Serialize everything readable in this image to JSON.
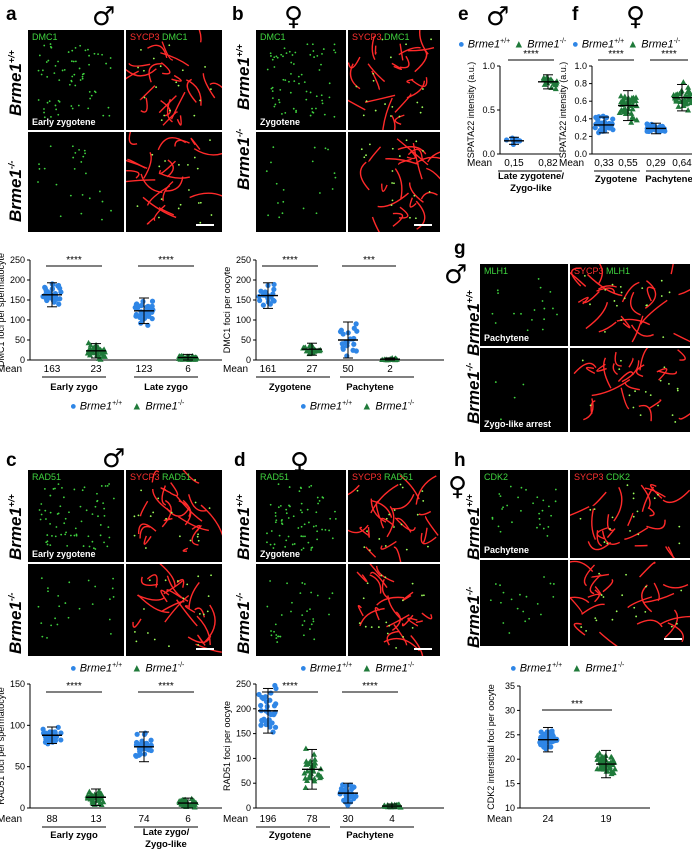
{
  "panels": {
    "a": {
      "label": "a",
      "sex": "♂"
    },
    "b": {
      "label": "b",
      "sex": "♀"
    },
    "c": {
      "label": "c",
      "sex": "♂"
    },
    "d": {
      "label": "d",
      "sex": "♀"
    },
    "e": {
      "label": "e",
      "sex": "♂"
    },
    "f": {
      "label": "f",
      "sex": "♀"
    },
    "g": {
      "label": "g",
      "sex": "♂"
    },
    "h": {
      "label": "h",
      "sex": "♀"
    }
  },
  "genotypes": {
    "wt": "Brme1",
    "wt_sup": "+/+",
    "ko": "Brme1",
    "ko_sup": "-/-"
  },
  "micro": {
    "a": {
      "ch1": "DMC1",
      "ch2a": "SYCP3",
      "ch2b": "DMC1",
      "stage": "Early zygotene"
    },
    "b": {
      "ch1": "DMC1",
      "ch2a": "SYCP3",
      "ch2b": "DMC1",
      "stage": "Zygotene"
    },
    "c": {
      "ch1": "RAD51",
      "ch2a": "SYCP3",
      "ch2b": "RAD51",
      "stage": "Early zygotene"
    },
    "d": {
      "ch1": "RAD51",
      "ch2a": "SYCP3",
      "ch2b": "RAD51",
      "stage": "Zygotene"
    },
    "g": {
      "ch1": "MLH1",
      "ch2a": "SYCP3",
      "ch2b": "MLH1",
      "stage1": "Pachytene",
      "stage2": "Zygo-like arrest"
    },
    "h": {
      "ch1": "CDK2",
      "ch2a": "SYCP3",
      "ch2b": "CDK2",
      "stage": "Pachytene"
    }
  },
  "colors": {
    "wt": "#2f86e6",
    "ko": "#1f7a3a"
  },
  "chart_data": [
    {
      "id": "a",
      "type": "scatter",
      "ylabel": "DMC1 foci per spermatocyte",
      "ylim": [
        0,
        250
      ],
      "yticks": [
        "0",
        "50",
        "100",
        "150",
        "200",
        "250"
      ],
      "categories": [
        "Early zygo",
        "Late zygo"
      ],
      "means": [
        "163",
        "23",
        "123",
        "6"
      ],
      "mean_label": "Mean",
      "series": [
        {
          "name": "Brme1+/+",
          "values": [
            163,
            123
          ]
        },
        {
          "name": "Brme1-/-",
          "values": [
            23,
            6
          ]
        }
      ],
      "sd": [
        30,
        18,
        32,
        8
      ],
      "significance": [
        "****",
        "****"
      ]
    },
    {
      "id": "b",
      "type": "scatter",
      "ylabel": "DMC1 foci per oocyte",
      "ylim": [
        0,
        250
      ],
      "yticks": [
        "0",
        "50",
        "100",
        "150",
        "200",
        "250"
      ],
      "categories": [
        "Zygotene",
        "Pachytene"
      ],
      "means": [
        "161",
        "27",
        "50",
        "2"
      ],
      "mean_label": "Mean",
      "series": [
        {
          "name": "Brme1+/+",
          "values": [
            161,
            50
          ]
        },
        {
          "name": "Brme1-/-",
          "values": [
            27,
            2
          ]
        }
      ],
      "sd": [
        32,
        15,
        45,
        3
      ],
      "significance": [
        "****",
        "***"
      ]
    },
    {
      "id": "c",
      "type": "scatter",
      "ylabel": "RAD51 foci per spermatocyte",
      "ylim": [
        0,
        150
      ],
      "yticks": [
        "0",
        "50",
        "100",
        "150"
      ],
      "categories": [
        "Early zygo",
        "Late zygo/ Zygo-like"
      ],
      "means": [
        "88",
        "13",
        "74",
        "6"
      ],
      "mean_label": "Mean",
      "series": [
        {
          "name": "Brme1+/+",
          "values": [
            88,
            74
          ]
        },
        {
          "name": "Brme1-/-",
          "values": [
            13,
            6
          ]
        }
      ],
      "sd": [
        10,
        10,
        18,
        6
      ],
      "significance": [
        "****",
        "****"
      ]
    },
    {
      "id": "d",
      "type": "scatter",
      "ylabel": "RAD51 foci per oocyte",
      "ylim": [
        0,
        250
      ],
      "yticks": [
        "0",
        "50",
        "100",
        "150",
        "200",
        "250"
      ],
      "categories": [
        "Zygotene",
        "Pachytene"
      ],
      "means": [
        "196",
        "78",
        "30",
        "4"
      ],
      "mean_label": "Mean",
      "series": [
        {
          "name": "Brme1+/+",
          "values": [
            196,
            30
          ]
        },
        {
          "name": "Brme1-/-",
          "values": [
            78,
            4
          ]
        }
      ],
      "sd": [
        45,
        40,
        20,
        4
      ],
      "significance": [
        "****",
        "****"
      ]
    },
    {
      "id": "e",
      "type": "scatter",
      "ylabel": "SPATA22 intensity (a.u.)",
      "ylim": [
        0,
        1.0
      ],
      "yticks": [
        "0.0",
        "0.5",
        "1.0"
      ],
      "categories": [
        "Late zygotene/ Zygo-like"
      ],
      "means": [
        "0,15",
        "0,82"
      ],
      "mean_label": "Mean",
      "series": [
        {
          "name": "Brme1+/+",
          "values": [
            0.15
          ]
        },
        {
          "name": "Brme1-/-",
          "values": [
            0.82
          ]
        }
      ],
      "sd": [
        0.04,
        0.08
      ],
      "significance": [
        "****"
      ]
    },
    {
      "id": "f",
      "type": "scatter",
      "ylabel": "SPATA22 intensity (a.u.)",
      "ylim": [
        0,
        1.0
      ],
      "yticks": [
        "0.0",
        "0.2",
        "0.4",
        "0.6",
        "0.8",
        "1.0"
      ],
      "categories": [
        "Zygotene",
        "Pachytene"
      ],
      "means": [
        "0,33",
        "0,55",
        "0,29",
        "0,64"
      ],
      "mean_label": "Mean",
      "series": [
        {
          "name": "Brme1+/+",
          "values": [
            0.33,
            0.29
          ]
        },
        {
          "name": "Brme1-/-",
          "values": [
            0.55,
            0.64
          ]
        }
      ],
      "sd": [
        0.09,
        0.17,
        0.06,
        0.15
      ],
      "significance": [
        "****",
        "****"
      ]
    },
    {
      "id": "h",
      "type": "scatter",
      "ylabel": "CDK2 interstitial foci per oocyte",
      "ylim": [
        10,
        35
      ],
      "yticks": [
        "10",
        "15",
        "20",
        "25",
        "30",
        "35"
      ],
      "categories": [],
      "means": [
        "24",
        "19"
      ],
      "mean_label": "Mean",
      "series": [
        {
          "name": "Brme1+/+",
          "values": [
            24
          ]
        },
        {
          "name": "Brme1-/-",
          "values": [
            19
          ]
        }
      ],
      "sd": [
        2.5,
        2.8
      ],
      "significance": [
        "***"
      ]
    }
  ]
}
